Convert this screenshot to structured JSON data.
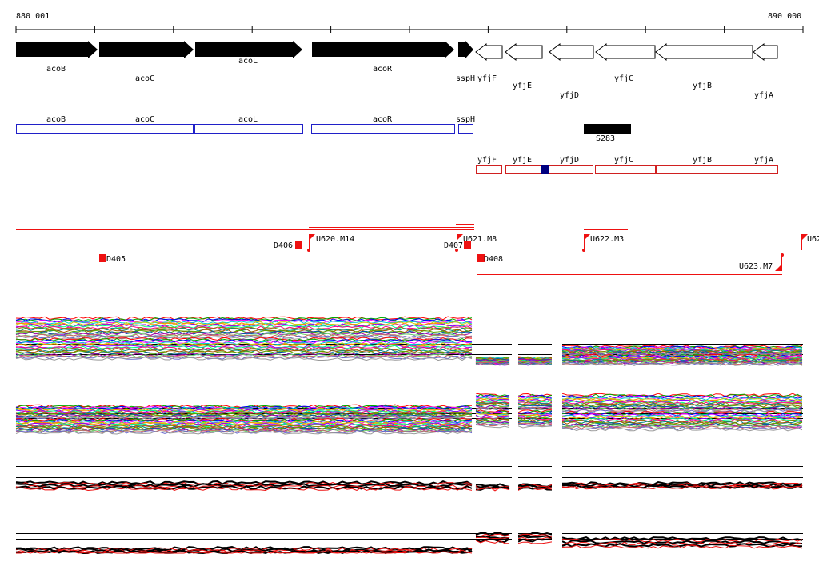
{
  "ruler": {
    "start_label": "880 001",
    "end_label": "890 000"
  },
  "genes_forward": [
    "acoB",
    "acoC",
    "acoL",
    "acoR",
    "sspH"
  ],
  "genes_reverse": [
    "yfjF",
    "yfjE",
    "yfjD",
    "yfjC",
    "yfjB",
    "yfjA"
  ],
  "annot_blue": [
    "acoB",
    "acoC",
    "acoL",
    "acoR",
    "sspH"
  ],
  "annot_red": [
    "yfjF",
    "yfjE",
    "yfjD",
    "yfjC",
    "yfjB",
    "yfjA"
  ],
  "feature_label": "S283",
  "markers_top": [
    "D406",
    "U620.M14",
    "D407",
    "U621.M8",
    "U622.M3",
    "U62"
  ],
  "markers_bottom": [
    "D405",
    "D408",
    "U623.M7"
  ],
  "colors": {
    "arrow_fill": "#000000",
    "annot_blue": "#2020c8",
    "annot_red": "#d02020",
    "marker": "#ee1111",
    "highlight": "#000080"
  }
}
